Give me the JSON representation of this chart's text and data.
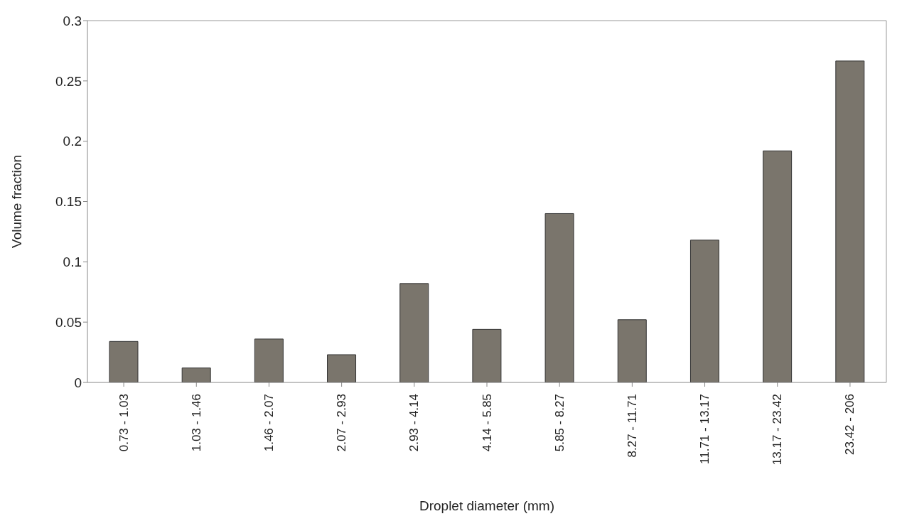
{
  "chart_data": {
    "type": "bar",
    "categories": [
      "0.73 - 1.03",
      "1.03 - 1.46",
      "1.46 - 2.07",
      "2.07 - 2.93",
      "2.93 - 4.14",
      "4.14 - 5.85",
      "5.85 - 8.27",
      "8.27 - 11.71",
      "11.71 - 13.17",
      "13.17 - 23.42",
      "23.42 - 206"
    ],
    "values": [
      0.034,
      0.012,
      0.036,
      0.023,
      0.082,
      0.044,
      0.14,
      0.052,
      0.118,
      0.192,
      0.2665
    ],
    "color": "#7a756c",
    "xlabel": "Droplet diameter (mm)",
    "ylabel": "Volume fraction",
    "ylim": [
      0,
      0.3
    ],
    "yticks": [
      0,
      0.05,
      0.1,
      0.15,
      0.2,
      0.25,
      0.3
    ],
    "grid": false,
    "legend": false
  }
}
